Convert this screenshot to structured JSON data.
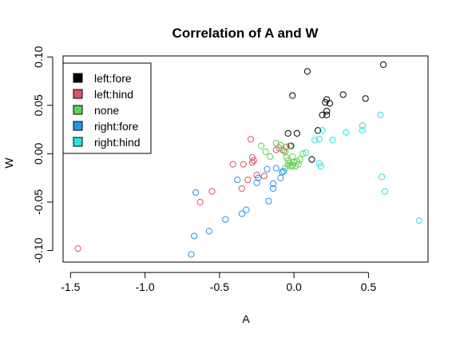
{
  "chart_data": {
    "type": "scatter",
    "title": "Correlation of A and W",
    "xlabel": "A",
    "ylabel": "W",
    "xlim": [
      -1.55,
      0.9
    ],
    "ylim": [
      -0.112,
      0.101
    ],
    "xticks": [
      -1.5,
      -1.0,
      -0.5,
      0.0,
      0.5
    ],
    "xtick_labels": [
      "-1.5",
      "-1.0",
      "-0.5",
      "0.0",
      "0.5"
    ],
    "yticks": [
      -0.1,
      -0.05,
      0.0,
      0.05,
      0.1
    ],
    "ytick_labels": [
      "-0.10",
      "-0.05",
      "0.00",
      "0.05",
      "0.10"
    ],
    "grid": false,
    "marker": "open-circle",
    "legend": {
      "position": "top-left",
      "entries": [
        {
          "label": "left:fore",
          "color": "#000000"
        },
        {
          "label": "left:hind",
          "color": "#DF536B"
        },
        {
          "label": "none",
          "color": "#61D04F"
        },
        {
          "label": "right:fore",
          "color": "#2297E6"
        },
        {
          "label": "right:hind",
          "color": "#28E2E5"
        }
      ]
    },
    "series": [
      {
        "name": "left:fore",
        "color": "#000000",
        "points": [
          [
            0.6,
            0.092
          ],
          [
            0.09,
            0.085
          ],
          [
            0.33,
            0.061
          ],
          [
            -0.01,
            0.06
          ],
          [
            0.48,
            0.057
          ],
          [
            0.22,
            0.056
          ],
          [
            0.21,
            0.053
          ],
          [
            0.24,
            0.052
          ],
          [
            0.22,
            0.044
          ],
          [
            0.22,
            0.04
          ],
          [
            0.19,
            0.04
          ],
          [
            0.16,
            0.024
          ],
          [
            0.02,
            0.021
          ],
          [
            -0.04,
            0.021
          ],
          [
            -0.02,
            0.008
          ],
          [
            0.12,
            -0.006
          ]
        ]
      },
      {
        "name": "left:hind",
        "color": "#DF536B",
        "points": [
          [
            -1.45,
            -0.098
          ],
          [
            -0.63,
            -0.05
          ],
          [
            -0.55,
            -0.039
          ],
          [
            -0.41,
            -0.011
          ],
          [
            -0.34,
            -0.011
          ],
          [
            -0.28,
            -0.009
          ],
          [
            -0.29,
            0.015
          ],
          [
            -0.28,
            -0.004
          ],
          [
            -0.27,
            -0.007
          ],
          [
            -0.25,
            -0.022
          ],
          [
            -0.2,
            -0.023
          ],
          [
            -0.31,
            -0.027
          ],
          [
            -0.35,
            -0.036
          ],
          [
            -0.12,
            0.004
          ],
          [
            -0.1,
            0.006
          ],
          [
            -0.05,
            0.007
          ],
          [
            -0.07,
            0.003
          ]
        ]
      },
      {
        "name": "none",
        "color": "#61D04F",
        "points": [
          [
            -0.22,
            0.008
          ],
          [
            -0.19,
            0.002
          ],
          [
            -0.16,
            -0.003
          ],
          [
            -0.12,
            0.011
          ],
          [
            -0.09,
            0.009
          ],
          [
            -0.08,
            0.004
          ],
          [
            -0.06,
            0.002
          ],
          [
            -0.05,
            -0.004
          ],
          [
            -0.04,
            -0.007
          ],
          [
            -0.03,
            -0.01
          ],
          [
            -0.02,
            -0.013
          ],
          [
            -0.01,
            -0.012
          ],
          [
            0.0,
            -0.009
          ],
          [
            -0.03,
            0.008
          ],
          [
            -0.01,
            -0.003
          ],
          [
            0.04,
            -0.006
          ],
          [
            0.06,
            0.0
          ],
          [
            0.02,
            -0.008
          ],
          [
            -0.06,
            -0.015
          ],
          [
            -0.04,
            -0.012
          ],
          [
            0.01,
            -0.013
          ],
          [
            0.03,
            -0.011
          ]
        ]
      },
      {
        "name": "right:fore",
        "color": "#2297E6",
        "points": [
          [
            -0.69,
            -0.104
          ],
          [
            -0.67,
            -0.085
          ],
          [
            -0.57,
            -0.08
          ],
          [
            -0.46,
            -0.068
          ],
          [
            -0.35,
            -0.062
          ],
          [
            -0.32,
            -0.058
          ],
          [
            -0.66,
            -0.04
          ],
          [
            -0.38,
            -0.027
          ],
          [
            -0.24,
            -0.025
          ],
          [
            -0.25,
            -0.03
          ],
          [
            -0.18,
            -0.016
          ],
          [
            -0.12,
            -0.015
          ],
          [
            -0.08,
            -0.019
          ],
          [
            -0.09,
            -0.025
          ],
          [
            -0.14,
            -0.031
          ],
          [
            -0.14,
            -0.036
          ],
          [
            -0.17,
            -0.049
          ],
          [
            -0.07,
            -0.018
          ]
        ]
      },
      {
        "name": "right:hind",
        "color": "#28E2E5",
        "points": [
          [
            0.84,
            -0.069
          ],
          [
            0.61,
            -0.039
          ],
          [
            0.59,
            -0.024
          ],
          [
            0.58,
            0.04
          ],
          [
            0.46,
            0.029
          ],
          [
            0.46,
            0.024
          ],
          [
            0.35,
            0.022
          ],
          [
            0.26,
            0.014
          ],
          [
            0.19,
            0.024
          ],
          [
            0.17,
            0.015
          ],
          [
            0.14,
            0.014
          ],
          [
            0.08,
            0.001
          ],
          [
            0.17,
            -0.01
          ],
          [
            0.18,
            -0.013
          ]
        ]
      }
    ]
  }
}
